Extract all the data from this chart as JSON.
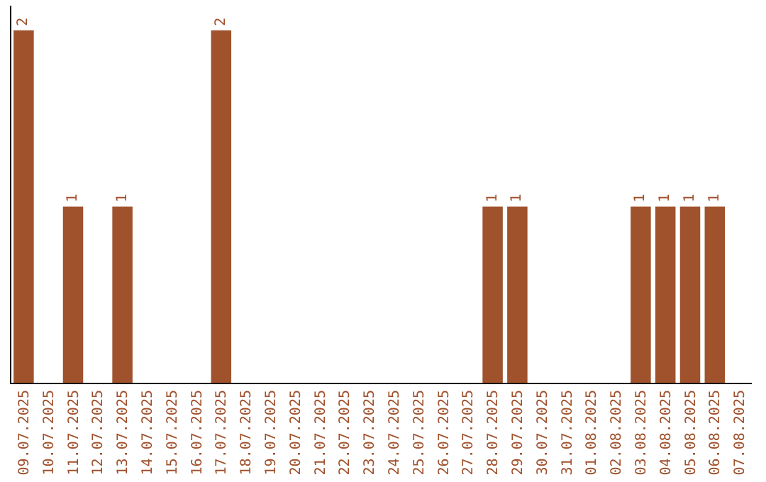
{
  "chart_data": {
    "type": "bar",
    "categories": [
      "09.07.2025",
      "10.07.2025",
      "11.07.2025",
      "12.07.2025",
      "13.07.2025",
      "14.07.2025",
      "15.07.2025",
      "16.07.2025",
      "17.07.2025",
      "18.07.2025",
      "19.07.2025",
      "20.07.2025",
      "21.07.2025",
      "22.07.2025",
      "23.07.2025",
      "24.07.2025",
      "25.07.2025",
      "26.07.2025",
      "27.07.2025",
      "28.07.2025",
      "29.07.2025",
      "30.07.2025",
      "31.07.2025",
      "01.08.2025",
      "02.08.2025",
      "03.08.2025",
      "04.08.2025",
      "05.08.2025",
      "06.08.2025",
      "07.08.2025"
    ],
    "values": [
      2,
      0,
      1,
      0,
      1,
      0,
      0,
      0,
      2,
      0,
      0,
      0,
      0,
      0,
      0,
      0,
      0,
      0,
      0,
      1,
      1,
      0,
      0,
      0,
      0,
      1,
      1,
      1,
      1,
      0
    ],
    "value_labels": [
      "2",
      null,
      "1",
      null,
      "1",
      null,
      null,
      null,
      "2",
      null,
      null,
      null,
      null,
      null,
      null,
      null,
      null,
      null,
      null,
      "1",
      "1",
      null,
      null,
      null,
      null,
      "1",
      "1",
      "1",
      "1",
      null
    ],
    "color": "#a0522d"
  }
}
